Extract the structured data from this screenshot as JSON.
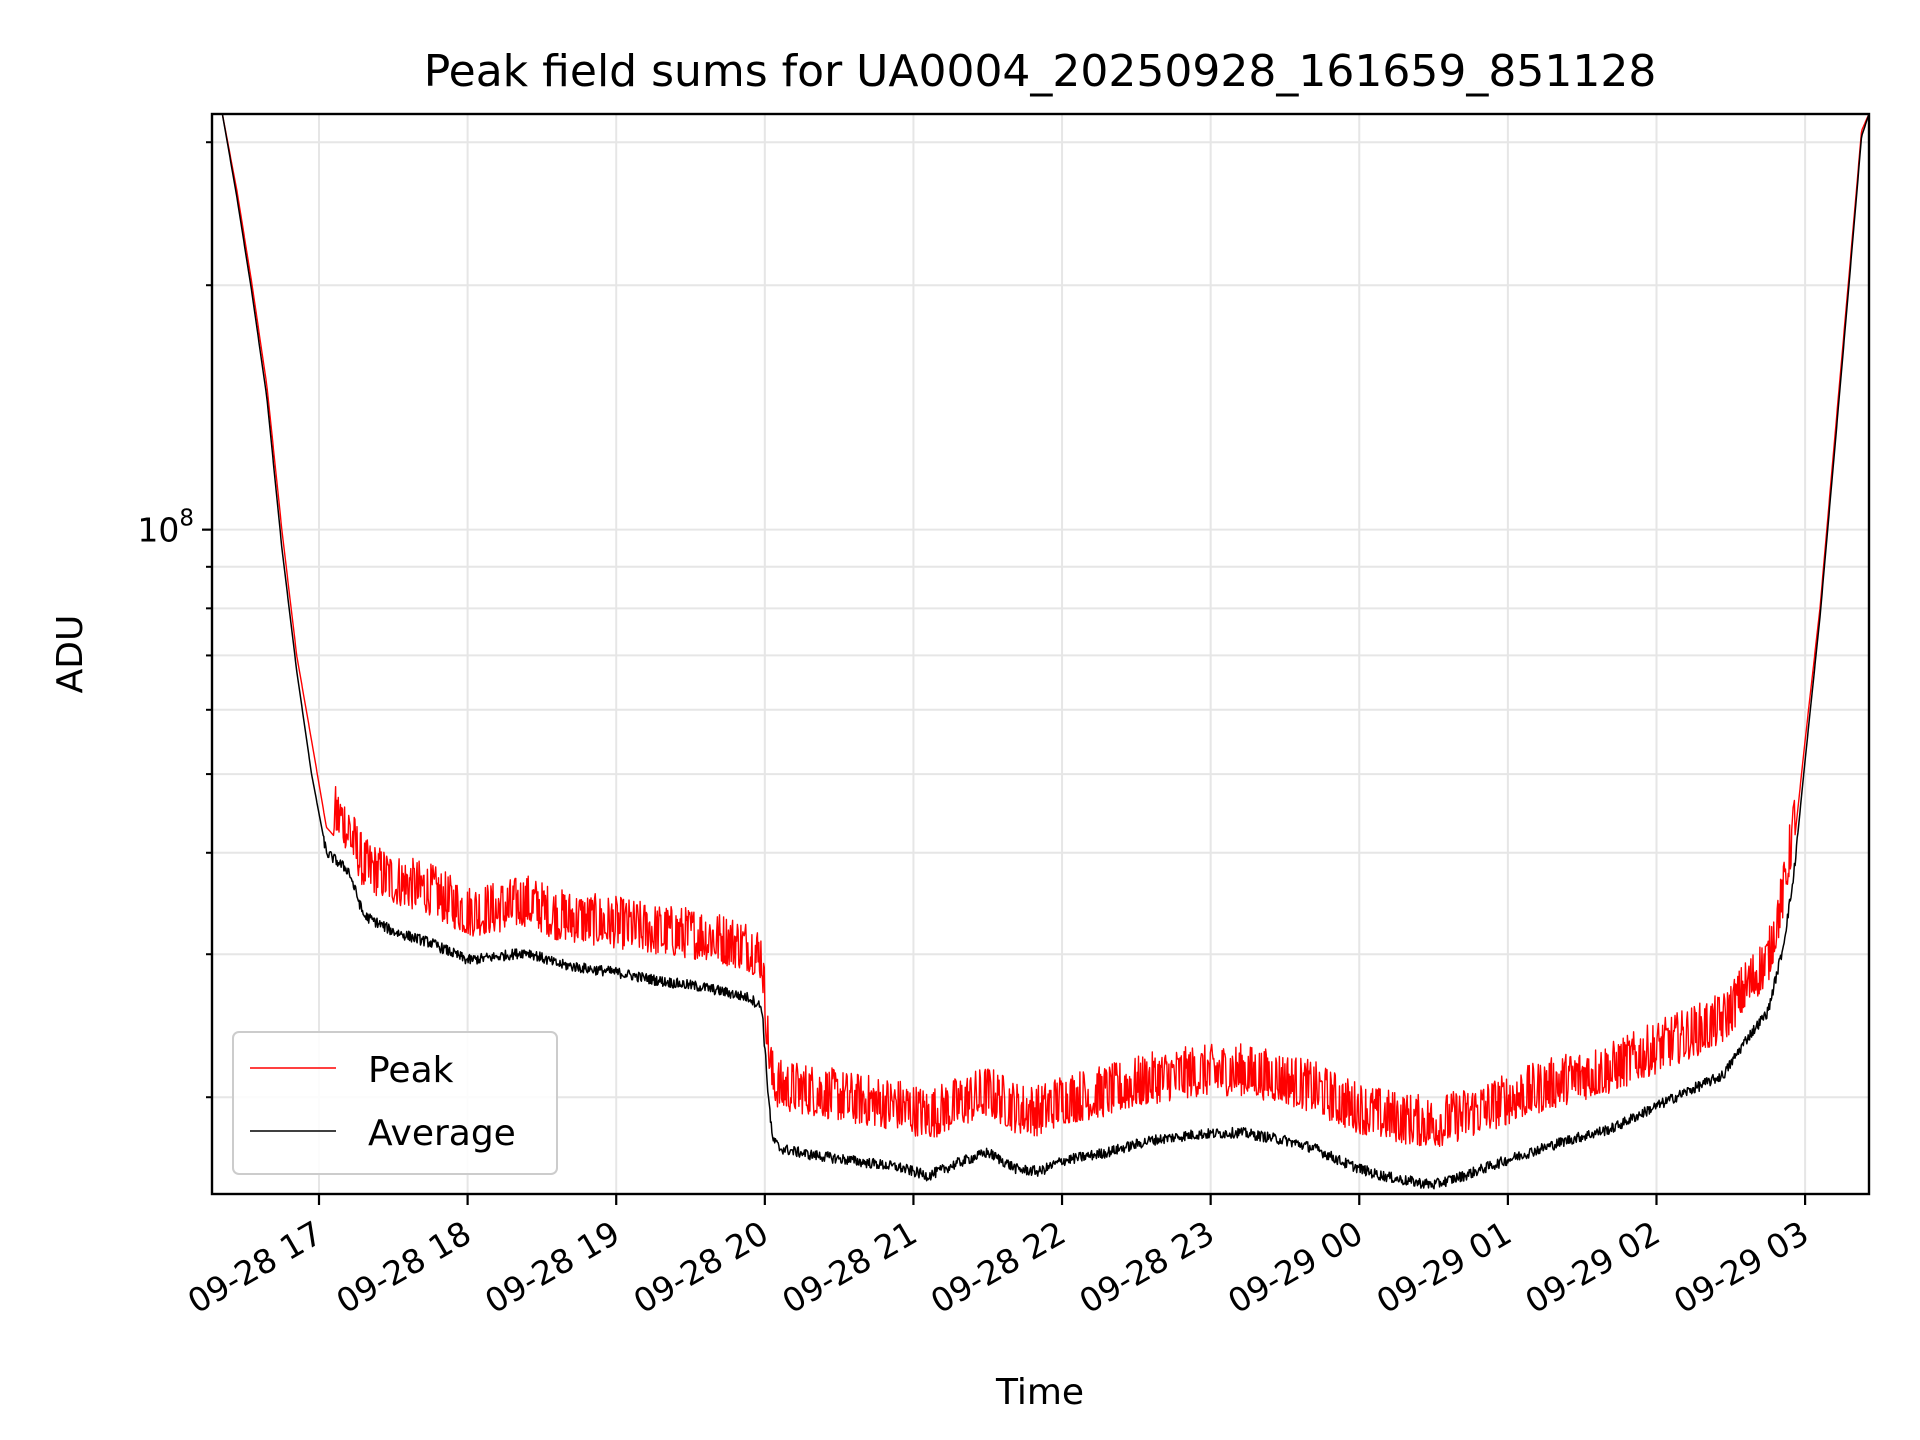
{
  "chart_data": {
    "type": "line",
    "title": "Peak field sums for UA0004_20250928_161659_851128",
    "xlabel": "Time",
    "ylabel": "ADU",
    "y_scale": "log",
    "ylim": [
      15200000,
      325000000
    ],
    "x_unit": "hours since 09-28 16:00",
    "xlim": [
      16.28,
      27.43
    ],
    "x_ticks": [
      {
        "value": 17,
        "label": "09-28 17"
      },
      {
        "value": 18,
        "label": "09-28 18"
      },
      {
        "value": 19,
        "label": "09-28 19"
      },
      {
        "value": 20,
        "label": "09-28 20"
      },
      {
        "value": 21,
        "label": "09-28 21"
      },
      {
        "value": 22,
        "label": "09-28 22"
      },
      {
        "value": 23,
        "label": "09-28 23"
      },
      {
        "value": 24,
        "label": "09-29 00"
      },
      {
        "value": 25,
        "label": "09-29 01"
      },
      {
        "value": 26,
        "label": "09-29 02"
      },
      {
        "value": 27,
        "label": "09-29 03"
      }
    ],
    "y_major_ticks": [
      {
        "value": 100000000,
        "base": "10",
        "exp": "8"
      }
    ],
    "y_minor_ticks": [
      20000000,
      30000000,
      40000000,
      50000000,
      60000000,
      70000000,
      80000000,
      90000000,
      200000000,
      300000000
    ],
    "grid": true,
    "legend_position": "lower-left",
    "series": [
      {
        "name": "Peak",
        "color": "#ff0000",
        "noise_amplitude": 0.16,
        "x": [
          16.28,
          16.35,
          16.45,
          16.55,
          16.65,
          16.75,
          16.85,
          16.95,
          17.05,
          17.2,
          17.3,
          17.5,
          17.75,
          18.0,
          18.2,
          18.4,
          18.6,
          18.8,
          19.0,
          19.3,
          19.6,
          19.9,
          19.98,
          20.02,
          20.05,
          20.1,
          20.3,
          20.6,
          20.9,
          21.1,
          21.3,
          21.5,
          21.7,
          21.85,
          22.0,
          22.3,
          22.6,
          22.9,
          23.2,
          23.5,
          23.7,
          23.9,
          24.1,
          24.3,
          24.5,
          24.7,
          24.9,
          25.1,
          25.4,
          25.7,
          25.95,
          26.2,
          26.45,
          26.6,
          26.75,
          26.85,
          26.92,
          27.0,
          27.1,
          27.2,
          27.3,
          27.38,
          27.43
        ],
        "y": [
          325000000,
          325000000,
          260000000,
          200000000,
          150000000,
          100000000,
          70000000,
          55000000,
          43000000,
          40000000,
          36000000,
          34500000,
          33500000,
          31500000,
          31800000,
          32500000,
          31200000,
          30800000,
          30500000,
          29800000,
          29500000,
          28500000,
          27800000,
          22000000,
          19800000,
          19200000,
          19000000,
          18500000,
          18200000,
          17700000,
          18300000,
          18900000,
          18000000,
          17900000,
          18500000,
          18900000,
          19600000,
          20000000,
          20100000,
          19600000,
          19100000,
          18300000,
          17800000,
          17500000,
          17300000,
          17700000,
          18200000,
          18800000,
          19600000,
          20200000,
          21200000,
          22200000,
          23200000,
          25500000,
          27500000,
          33000000,
          40000000,
          55000000,
          80000000,
          130000000,
          210000000,
          310000000,
          325000000
        ]
      },
      {
        "name": "Average",
        "color": "#000000",
        "noise_amplitude": 0.015,
        "x": [
          16.28,
          16.35,
          16.45,
          16.55,
          16.65,
          16.75,
          16.85,
          16.95,
          17.05,
          17.2,
          17.3,
          17.5,
          17.75,
          18.0,
          18.2,
          18.4,
          18.6,
          18.8,
          19.0,
          19.3,
          19.6,
          19.9,
          19.98,
          20.02,
          20.05,
          20.1,
          20.3,
          20.6,
          20.9,
          21.1,
          21.3,
          21.5,
          21.7,
          21.85,
          22.0,
          22.3,
          22.6,
          22.9,
          23.2,
          23.5,
          23.7,
          23.9,
          24.1,
          24.3,
          24.5,
          24.7,
          24.9,
          25.1,
          25.4,
          25.7,
          25.95,
          26.2,
          26.45,
          26.6,
          26.75,
          26.85,
          26.92,
          27.0,
          27.1,
          27.2,
          27.3,
          27.38,
          27.43
        ],
        "y": [
          325000000,
          325000000,
          255000000,
          195000000,
          145000000,
          95000000,
          67000000,
          50000000,
          40000000,
          38000000,
          33500000,
          32000000,
          31000000,
          29500000,
          29800000,
          30200000,
          29200000,
          28800000,
          28500000,
          27800000,
          27300000,
          26500000,
          25800000,
          20500000,
          17800000,
          17300000,
          17000000,
          16700000,
          16400000,
          16000000,
          16600000,
          17100000,
          16300000,
          16200000,
          16700000,
          17100000,
          17700000,
          18000000,
          18100000,
          17700000,
          17300000,
          16600000,
          16100000,
          15800000,
          15600000,
          16000000,
          16500000,
          17000000,
          17700000,
          18300000,
          19300000,
          20300000,
          21300000,
          23500000,
          25500000,
          30500000,
          37000000,
          52000000,
          78000000,
          126000000,
          205000000,
          305000000,
          325000000
        ]
      }
    ]
  }
}
